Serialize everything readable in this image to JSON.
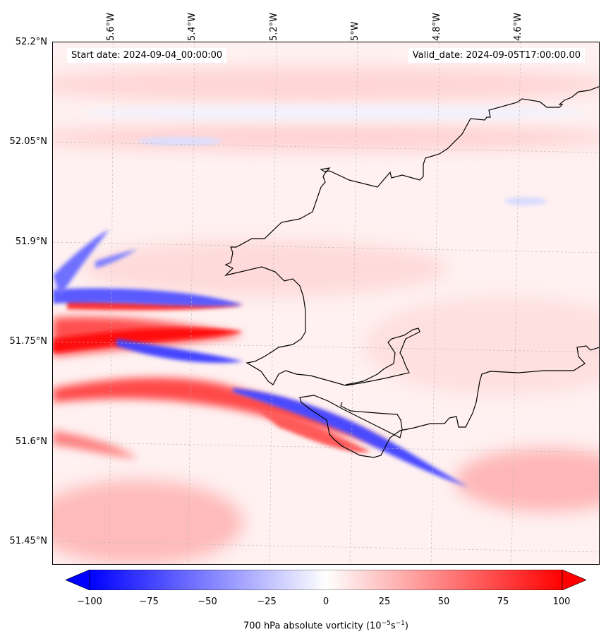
{
  "header": {
    "start_date": "Start date: 2024-09-04_00:00:00",
    "valid_date": "Valid_date: 2024-09-05T17:00:00.00"
  },
  "axes": {
    "longitude_ticks": [
      "5.6°W",
      "5.4°W",
      "5.2°W",
      "5°W",
      "4.8°W",
      "4.6°W"
    ],
    "latitude_ticks": [
      "52.2°N",
      "52.05°N",
      "51.9°N",
      "51.75°N",
      "51.6°N",
      "51.45°N"
    ]
  },
  "map": {
    "variable": "700 hPa absolute vorticity",
    "coastline_color": "#000000",
    "gridline_style": "dashed light grey"
  },
  "colorbar": {
    "min": -100,
    "max": 100,
    "extend": "both",
    "colormap": "bwr",
    "ticks": [
      "−100",
      "−75",
      "−50",
      "−25",
      "0",
      "25",
      "50",
      "75",
      "100"
    ],
    "label_main": "700 hPa absolute vorticity (10",
    "label_exp1": "−5",
    "label_mid": "s",
    "label_exp2": "−1",
    "label_end": ")",
    "colors": {
      "negative": "#0000ff",
      "zero": "#ffffff",
      "positive": "#ff0000"
    }
  }
}
